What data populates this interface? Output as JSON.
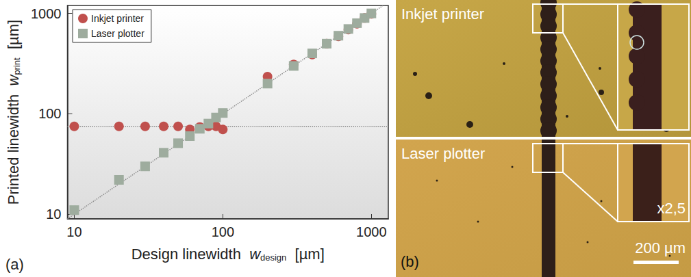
{
  "chart_data": {
    "type": "scatter",
    "x_label": {
      "text": "Design linewidth",
      "symbol": "w",
      "subscript": "design",
      "unit": "[µm]"
    },
    "y_label": {
      "text": "Printed linewidth",
      "symbol": "w",
      "subscript": "print",
      "unit": "[µm]"
    },
    "panel_label": "(a)",
    "x": [
      10,
      20,
      30,
      40,
      50,
      60,
      70,
      80,
      90,
      100,
      200,
      300,
      400,
      500,
      600,
      700,
      800,
      900,
      1000
    ],
    "series": [
      {
        "name": "Inkjet printer",
        "color": "#c0504d",
        "marker": "circle",
        "values": [
          75,
          75,
          75,
          75,
          75,
          70,
          74,
          75,
          75,
          70,
          235,
          310,
          390,
          500,
          590,
          690,
          790,
          900,
          990
        ]
      },
      {
        "name": "Laser plotter",
        "color": "#9eac9e",
        "marker": "square",
        "values": [
          11,
          22,
          30,
          41,
          51,
          60,
          71,
          80,
          92,
          102,
          200,
          300,
          400,
          500,
          600,
          700,
          800,
          900,
          1000
        ]
      }
    ],
    "reference_lines": [
      {
        "x": [
          9,
          1300
        ],
        "y": [
          75,
          75
        ],
        "line_style": "dotted",
        "color": "#8c8c8c"
      },
      {
        "x": [
          9,
          1300
        ],
        "y": [
          9,
          1300
        ],
        "line_style": "dotted",
        "color": "#8c8c8c"
      }
    ],
    "xlim": [
      9,
      1300
    ],
    "ylim": [
      9,
      1200
    ],
    "xticks": [
      10,
      100,
      1000
    ],
    "yticks": [
      10,
      100,
      1000
    ],
    "log": true,
    "grid": false,
    "legend": "upper left"
  },
  "panel_b": {
    "label": "(b)",
    "top": {
      "label": "Inkjet printer"
    },
    "bottom": {
      "label": "Laser plotter",
      "zoom_label": "x2,5"
    },
    "scale_bar": "200 µm"
  }
}
